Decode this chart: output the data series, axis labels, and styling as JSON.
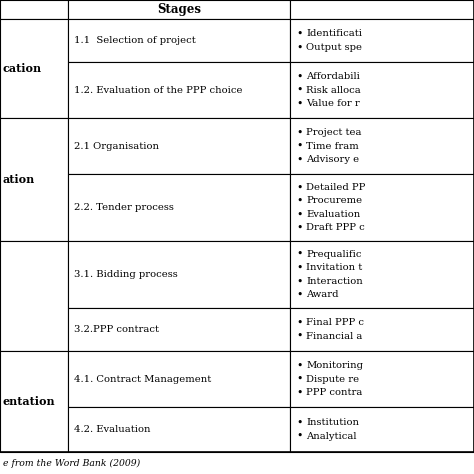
{
  "title": "Stages",
  "rows": [
    {
      "phase": "cation",
      "phase_group": 0,
      "stage": "1.1  Selection of project",
      "activities": [
        "Identificati",
        "Output spe"
      ]
    },
    {
      "phase": "",
      "phase_group": 0,
      "stage": "1.2. Evaluation of the PPP choice",
      "activities": [
        "Affordabili",
        "Risk alloca",
        "Value for r"
      ]
    },
    {
      "phase": "ation",
      "phase_group": 1,
      "stage": "2.1 Organisation",
      "activities": [
        "Project tea",
        "Time fram",
        "Advisory e"
      ]
    },
    {
      "phase": "",
      "phase_group": 1,
      "stage": "2.2. Tender process",
      "activities": [
        "Detailed PP",
        "Procureme",
        "Evaluation",
        "Draft PPP c"
      ]
    },
    {
      "phase": "",
      "phase_group": 2,
      "stage": "3.1. Bidding process",
      "activities": [
        "Prequalific",
        "Invitation t",
        "Interaction",
        "Award"
      ]
    },
    {
      "phase": "",
      "phase_group": 2,
      "stage": "3.2.PPP contract",
      "activities": [
        "Final PPP c",
        "Financial a"
      ]
    },
    {
      "phase": "entation",
      "phase_group": 3,
      "stage": "4.1. Contract Management",
      "activities": [
        "Monitoring",
        "Dispute re",
        "PPP contra"
      ]
    },
    {
      "phase": "",
      "phase_group": 3,
      "stage": "4.2. Evaluation",
      "activities": [
        "Institution",
        "Analytical"
      ]
    }
  ],
  "footer": "e from the Word Bank (2009)",
  "bg_color": "#ffffff",
  "line_color": "#000000",
  "text_color": "#000000",
  "font_size": 7.2,
  "header_font_size": 8.5,
  "phase_font_size": 8.0
}
